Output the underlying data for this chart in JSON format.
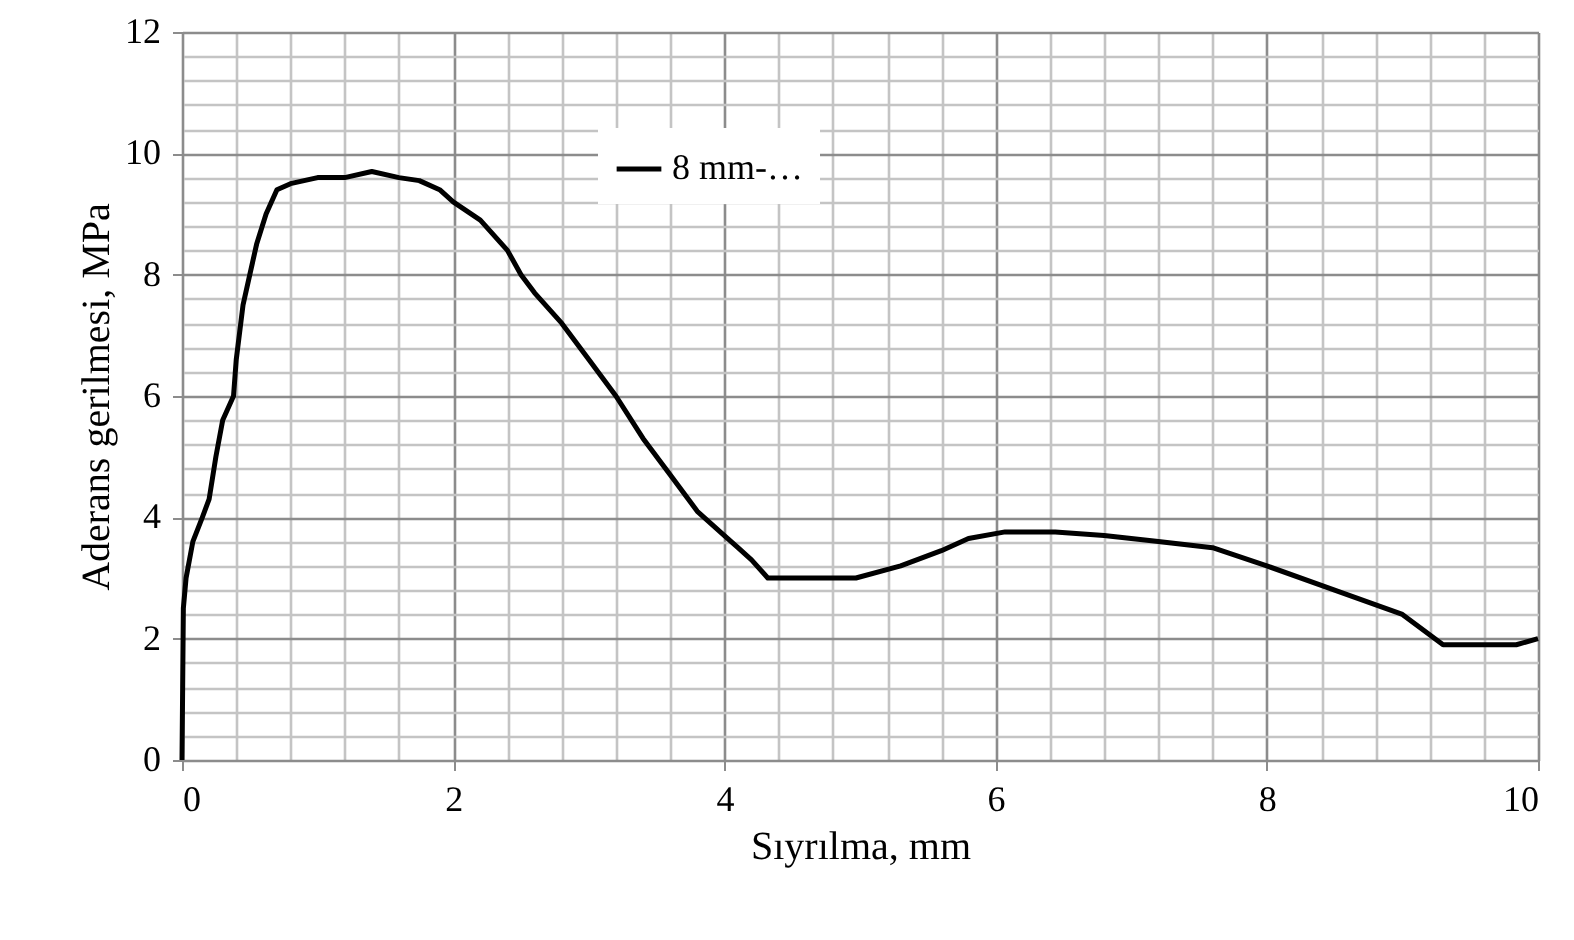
{
  "chart_data": {
    "type": "line",
    "xlabel": "Sıyrılma, mm",
    "ylabel": "Aderans gerilmesi, MPa",
    "xlim": [
      0,
      10
    ],
    "ylim": [
      0,
      12
    ],
    "xticks": [
      0,
      {
        "value": 0.4,
        "label": null
      },
      {
        "value": 0.8,
        "label": null
      },
      {
        "value": 1.2,
        "label": null
      },
      {
        "value": 1.6,
        "label": null
      },
      2,
      {
        "value": 2.4,
        "label": null
      },
      {
        "value": 2.8,
        "label": null
      },
      {
        "value": 3.2,
        "label": null
      },
      {
        "value": 3.6,
        "label": null
      },
      4,
      {
        "value": 4.4,
        "label": null
      },
      {
        "value": 4.8,
        "label": null
      },
      {
        "value": 5.2,
        "label": null
      },
      {
        "value": 5.6,
        "label": null
      },
      6,
      {
        "value": 6.4,
        "label": null
      },
      {
        "value": 6.8,
        "label": null
      },
      {
        "value": 7.2,
        "label": null
      },
      {
        "value": 7.6,
        "label": null
      },
      8,
      {
        "value": 8.4,
        "label": null
      },
      {
        "value": 8.8,
        "label": null
      },
      {
        "value": 9.2,
        "label": null
      },
      {
        "value": 9.6,
        "label": null
      },
      10
    ],
    "yticks": [
      0,
      {
        "value": 0.4,
        "label": null
      },
      {
        "value": 0.8,
        "label": null
      },
      {
        "value": 1.2,
        "label": null
      },
      {
        "value": 1.6,
        "label": null
      },
      2,
      {
        "value": 2.4,
        "label": null
      },
      {
        "value": 2.8,
        "label": null
      },
      {
        "value": 3.2,
        "label": null
      },
      {
        "value": 3.6,
        "label": null
      },
      4,
      {
        "value": 4.4,
        "label": null
      },
      {
        "value": 4.8,
        "label": null
      },
      {
        "value": 5.2,
        "label": null
      },
      {
        "value": 5.6,
        "label": null
      },
      6,
      {
        "value": 6.4,
        "label": null
      },
      {
        "value": 6.8,
        "label": null
      },
      {
        "value": 7.2,
        "label": null
      },
      {
        "value": 7.6,
        "label": null
      },
      8,
      {
        "value": 8.4,
        "label": null
      },
      {
        "value": 8.8,
        "label": null
      },
      {
        "value": 9.2,
        "label": null
      },
      {
        "value": 9.6,
        "label": null
      },
      10,
      {
        "value": 10.4,
        "label": null
      },
      {
        "value": 10.8,
        "label": null
      },
      {
        "value": 11.2,
        "label": null
      },
      {
        "value": 11.6,
        "label": null
      },
      12
    ],
    "grid": true,
    "legend": "top",
    "marker": "none",
    "line_style": "solid",
    "series": [
      {
        "name": "8 mm-…",
        "color": "#000000",
        "x": [
          0,
          0.01,
          0.03,
          0.08,
          0.15,
          0.2,
          0.25,
          0.3,
          0.38,
          0.4,
          0.45,
          0.5,
          0.55,
          0.62,
          0.7,
          0.8,
          1.0,
          1.2,
          1.4,
          1.6,
          1.75,
          1.9,
          2.0,
          2.2,
          2.4,
          2.5,
          2.6,
          2.8,
          3.0,
          3.2,
          3.4,
          3.6,
          3.8,
          4.0,
          4.1,
          4.2,
          4.32,
          4.5,
          4.97,
          5.3,
          5.6,
          5.8,
          6.07,
          6.44,
          6.8,
          7.2,
          7.6,
          8.0,
          8.5,
          9.0,
          9.3,
          9.84,
          10
        ],
        "values": [
          0,
          2.5,
          3.0,
          3.6,
          4.0,
          4.3,
          5.0,
          5.6,
          6.0,
          6.6,
          7.5,
          8.0,
          8.5,
          9.0,
          9.4,
          9.5,
          9.6,
          9.6,
          9.7,
          9.6,
          9.55,
          9.4,
          9.2,
          8.9,
          8.4,
          8.0,
          7.7,
          7.2,
          6.6,
          6.0,
          5.3,
          4.7,
          4.1,
          3.7,
          3.5,
          3.3,
          3.0,
          3.0,
          3.0,
          3.2,
          3.45,
          3.65,
          3.76,
          3.76,
          3.7,
          3.6,
          3.5,
          3.2,
          2.8,
          2.4,
          1.9,
          1.9,
          2.0
        ]
      }
    ]
  }
}
